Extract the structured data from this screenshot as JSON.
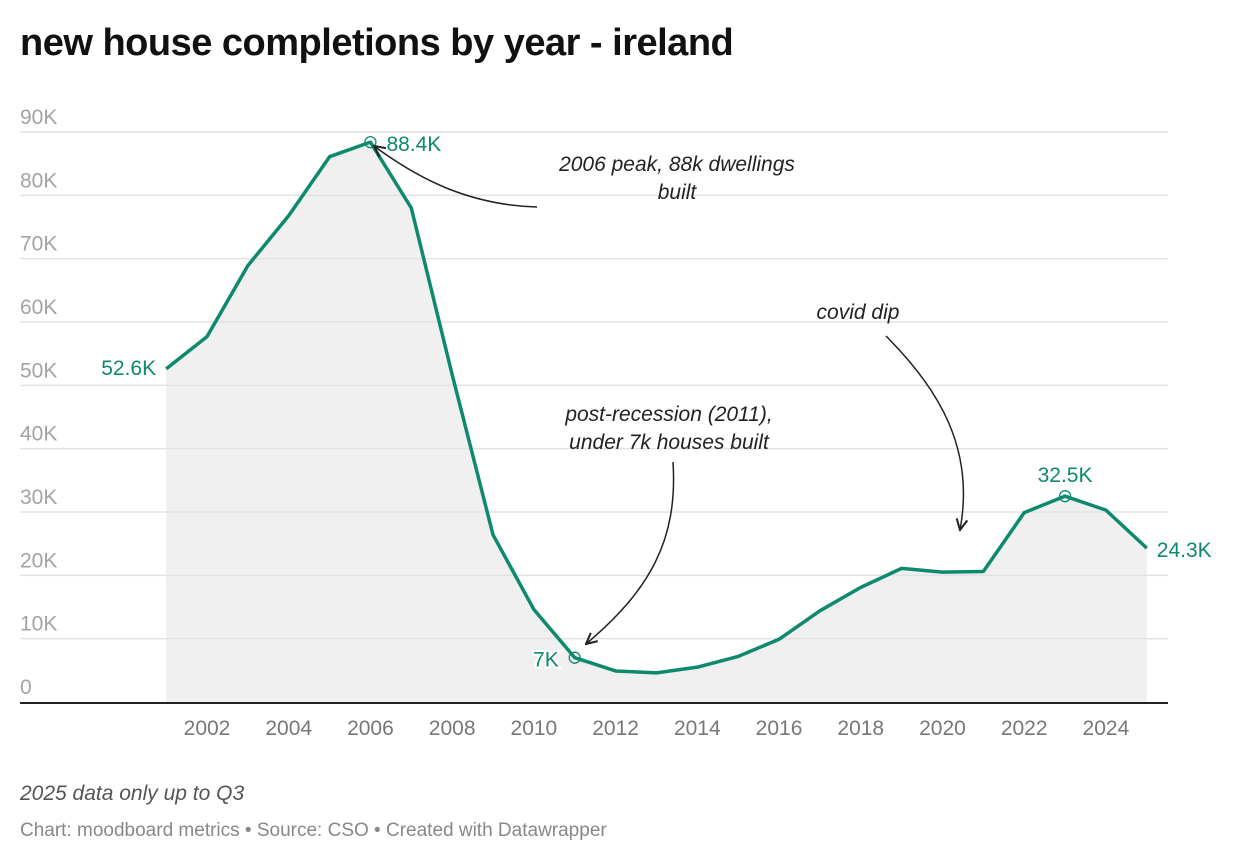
{
  "title": "new house completions by year - ireland",
  "note": "2025 data only up to Q3",
  "credit": "Chart: moodboard metrics • Source: CSO • Created with Datawrapper",
  "colors": {
    "line": "#0d8a6d",
    "area": "#f0f0f0",
    "grid": "#e2e2e2",
    "axis": "#222222"
  },
  "chart_data": {
    "type": "area",
    "title": "new house completions by year - ireland",
    "xlabel": "",
    "ylabel": "",
    "x": [
      2001,
      2002,
      2003,
      2004,
      2005,
      2006,
      2007,
      2008,
      2009,
      2010,
      2011,
      2012,
      2013,
      2014,
      2015,
      2016,
      2017,
      2018,
      2019,
      2020,
      2021,
      2022,
      2023,
      2024,
      2025
    ],
    "values": [
      52.6,
      57.7,
      68.9,
      76.8,
      86.1,
      88.4,
      78.0,
      51.7,
      26.4,
      14.6,
      7.0,
      4.9,
      4.6,
      5.5,
      7.2,
      9.9,
      14.4,
      18.1,
      21.1,
      20.5,
      20.6,
      29.9,
      32.5,
      30.3,
      24.3
    ],
    "unit": "K",
    "ylim": [
      0,
      90
    ],
    "yticks": [
      "0",
      "10K",
      "20K",
      "30K",
      "40K",
      "50K",
      "60K",
      "70K",
      "80K",
      "90K"
    ],
    "xticks": [
      "2002",
      "2004",
      "2006",
      "2008",
      "2010",
      "2012",
      "2014",
      "2016",
      "2018",
      "2020",
      "2022",
      "2024"
    ],
    "grid": true,
    "point_labels": [
      {
        "year": 2001,
        "text": "52.6K"
      },
      {
        "year": 2006,
        "text": "88.4K"
      },
      {
        "year": 2011,
        "text": "7K"
      },
      {
        "year": 2023,
        "text": "32.5K"
      },
      {
        "year": 2025,
        "text": "24.3K"
      }
    ],
    "annotations": [
      {
        "lines": [
          "2006 peak, 88k dwellings",
          "built"
        ],
        "target_year": 2006
      },
      {
        "lines": [
          "post-recession (2011),",
          "under 7k houses built"
        ],
        "target_year": 2011
      },
      {
        "lines": [
          "covid dip"
        ],
        "target_year": 2020
      }
    ]
  }
}
